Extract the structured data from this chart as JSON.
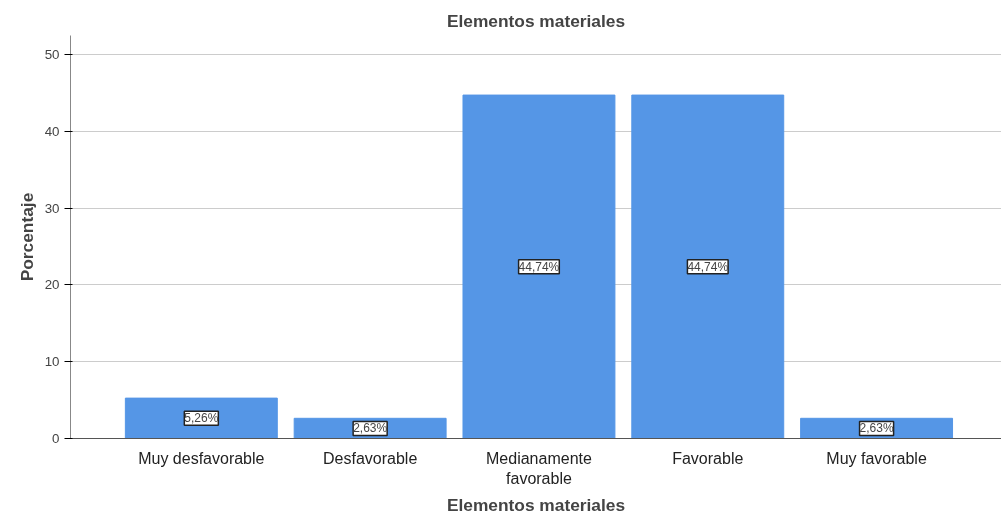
{
  "chart_data": {
    "type": "bar",
    "title": "Elementos materiales",
    "xlabel": "Elementos materiales",
    "ylabel": "Porcentaje",
    "categories": [
      "Muy desfavorable",
      "Desfavorable",
      "Medianamente\nfavorable",
      "Favorable",
      "Muy favorable"
    ],
    "values": [
      5.26,
      2.63,
      44.74,
      44.74,
      2.63
    ],
    "value_labels": [
      "5,26%",
      "2,63%",
      "44,74%",
      "44,74%",
      "2,63%"
    ],
    "color": "#5596e6",
    "ylim": [
      0,
      52.5
    ],
    "yticks": [
      0,
      10,
      20,
      30,
      40,
      50
    ],
    "grid": "y"
  }
}
